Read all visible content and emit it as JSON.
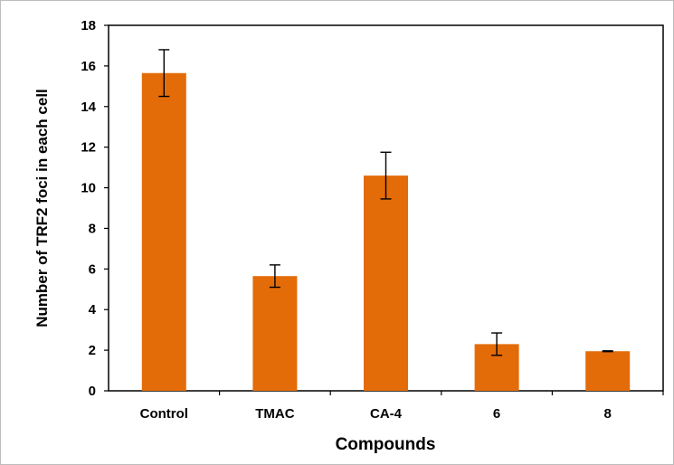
{
  "chart_data": {
    "type": "bar",
    "title": "",
    "xlabel": "Compounds",
    "ylabel": "Number of TRF2 foci in each cell",
    "categories": [
      "Control",
      "TMAC",
      "CA-4",
      "6",
      "8"
    ],
    "values": [
      15.65,
      5.65,
      10.6,
      2.3,
      1.95
    ],
    "error": [
      1.15,
      0.55,
      1.15,
      0.55,
      0.02
    ],
    "ylim": [
      0,
      18
    ],
    "yticks": [
      0,
      2,
      4,
      6,
      8,
      10,
      12,
      14,
      16,
      18
    ],
    "grid": false,
    "legend": "none",
    "bar_color": "#e36c09",
    "error_bar_color": "#000000"
  }
}
